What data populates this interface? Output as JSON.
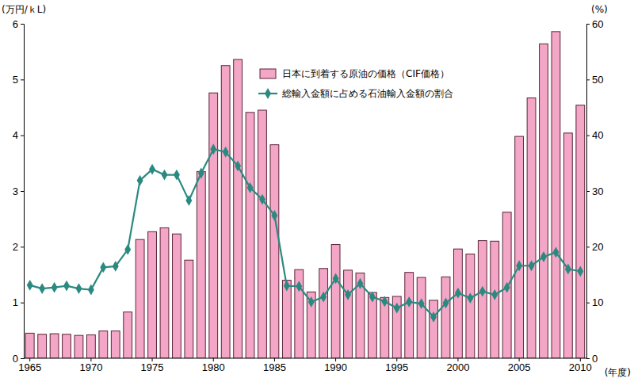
{
  "chart_data": {
    "type": "bar",
    "y_label": "(万円/ｋL)",
    "y2_label": "(%)",
    "x_label": "(年度)",
    "categories": [
      "1965",
      null,
      null,
      null,
      null,
      "1970",
      null,
      null,
      null,
      null,
      "1975",
      null,
      null,
      null,
      null,
      "1980",
      null,
      null,
      null,
      null,
      "1985",
      null,
      null,
      null,
      null,
      "1990",
      null,
      null,
      null,
      null,
      "1995",
      null,
      null,
      null,
      null,
      "2000",
      null,
      null,
      null,
      null,
      "2005",
      null,
      null,
      null,
      null,
      "2010"
    ],
    "ylim": [
      0,
      6
    ],
    "yticks": [
      0,
      1,
      2,
      3,
      4,
      5,
      6
    ],
    "y2lim": [
      0,
      60
    ],
    "y2ticks": [
      0,
      10,
      20,
      30,
      40,
      50,
      60
    ],
    "grid": false,
    "legend": "top",
    "series": [
      {
        "name": "日本に到着する原油の価格（CIF価格）",
        "type": "bar",
        "color": "#f4a6c6",
        "values": [
          0.45,
          0.43,
          0.44,
          0.43,
          0.41,
          0.42,
          0.49,
          0.49,
          0.83,
          2.13,
          2.27,
          2.34,
          2.23,
          1.76,
          3.35,
          4.76,
          5.25,
          5.36,
          4.41,
          4.45,
          3.83,
          1.4,
          1.59,
          1.19,
          1.61,
          2.04,
          1.58,
          1.53,
          1.18,
          1.09,
          1.11,
          1.54,
          1.45,
          1.04,
          1.46,
          1.96,
          1.87,
          2.11,
          2.1,
          2.62,
          3.98,
          4.67,
          5.64,
          5.86,
          4.04,
          4.54
        ]
      },
      {
        "name": "総輸入金額に占める石油輸入金額の割合",
        "type": "line",
        "axis": "y2",
        "color": "#2b8a80",
        "marker": "diamond",
        "values": [
          13.1,
          12.5,
          12.7,
          13.0,
          12.5,
          12.3,
          16.3,
          16.5,
          19.5,
          31.9,
          33.9,
          32.9,
          32.9,
          28.3,
          33.2,
          37.5,
          37.0,
          34.5,
          30.6,
          28.5,
          25.6,
          13.0,
          12.9,
          10.1,
          11.0,
          14.3,
          11.4,
          13.4,
          11.0,
          10.2,
          9.0,
          10.1,
          9.8,
          7.4,
          9.9,
          11.7,
          10.8,
          12.0,
          11.4,
          12.7,
          16.6,
          16.6,
          18.2,
          19.0,
          16.0,
          15.6
        ]
      }
    ]
  }
}
